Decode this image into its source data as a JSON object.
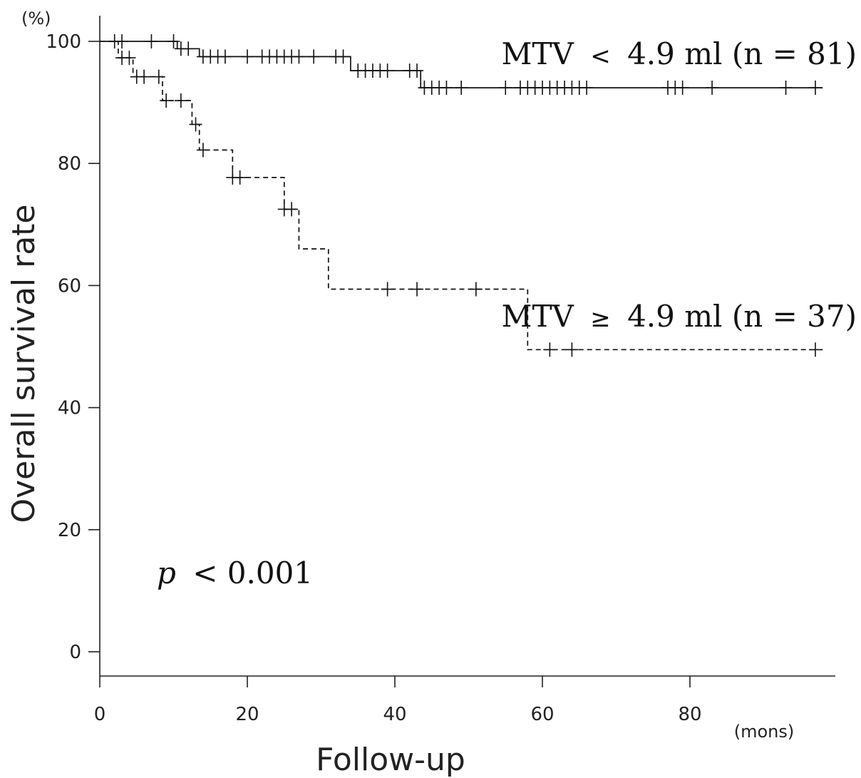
{
  "chart_data": {
    "type": "line",
    "subtype": "kaplan-meier",
    "title": "",
    "xlabel": "Follow-up",
    "x_unit": "(mons)",
    "ylabel": "Overall survival rate",
    "y_unit": "(%)",
    "xlim": [
      0,
      98
    ],
    "ylim": [
      0,
      100
    ],
    "x_ticks": [
      0,
      20,
      40,
      60,
      80
    ],
    "y_ticks": [
      0,
      20,
      40,
      60,
      80,
      100
    ],
    "grid": false,
    "annotation": {
      "p_symbol": "p",
      "p_text": "< 0.001"
    },
    "series": [
      {
        "name": "MTV < 4.9 ml (n = 81)",
        "line_style": "solid",
        "label_parts": {
          "lhs": "MTV",
          "op": "<",
          "rhs": "4.9 ml (n = 81)"
        },
        "steps": [
          [
            0,
            100
          ],
          [
            10.5,
            100
          ],
          [
            10.5,
            98.8
          ],
          [
            13.5,
            98.8
          ],
          [
            13.5,
            97.5
          ],
          [
            34,
            97.5
          ],
          [
            34,
            95.2
          ],
          [
            43.5,
            95.2
          ],
          [
            43.5,
            92.4
          ],
          [
            98,
            92.4
          ]
        ],
        "censored": [
          [
            2,
            100
          ],
          [
            3,
            100
          ],
          [
            7,
            100
          ],
          [
            10,
            100
          ],
          [
            11,
            98.8
          ],
          [
            12,
            98.8
          ],
          [
            14,
            97.5
          ],
          [
            15,
            97.5
          ],
          [
            16,
            97.5
          ],
          [
            17,
            97.5
          ],
          [
            20,
            97.5
          ],
          [
            22,
            97.5
          ],
          [
            23,
            97.5
          ],
          [
            24,
            97.5
          ],
          [
            25,
            97.5
          ],
          [
            26,
            97.5
          ],
          [
            27,
            97.5
          ],
          [
            29,
            97.5
          ],
          [
            32,
            97.5
          ],
          [
            33,
            97.5
          ],
          [
            35,
            95.2
          ],
          [
            36,
            95.2
          ],
          [
            37,
            95.2
          ],
          [
            38,
            95.2
          ],
          [
            39,
            95.2
          ],
          [
            42,
            95.2
          ],
          [
            43,
            95.2
          ],
          [
            44,
            92.4
          ],
          [
            45,
            92.4
          ],
          [
            46,
            92.4
          ],
          [
            47,
            92.4
          ],
          [
            49,
            92.4
          ],
          [
            55,
            92.4
          ],
          [
            57,
            92.4
          ],
          [
            58,
            92.4
          ],
          [
            59,
            92.4
          ],
          [
            60,
            92.4
          ],
          [
            61,
            92.4
          ],
          [
            62,
            92.4
          ],
          [
            63,
            92.4
          ],
          [
            64,
            92.4
          ],
          [
            65,
            92.4
          ],
          [
            66,
            92.4
          ],
          [
            77,
            92.4
          ],
          [
            78,
            92.4
          ],
          [
            79,
            92.4
          ],
          [
            83,
            92.4
          ],
          [
            93,
            92.4
          ],
          [
            97,
            92.4
          ]
        ]
      },
      {
        "name": "MTV ≥ 4.9 ml (n = 37)",
        "line_style": "dashed",
        "label_parts": {
          "lhs": "MTV",
          "op": "≥",
          "rhs": "4.9 ml (n = 37)"
        },
        "steps": [
          [
            0,
            100
          ],
          [
            2.5,
            100
          ],
          [
            2.5,
            97.3
          ],
          [
            4.5,
            97.3
          ],
          [
            4.5,
            94.2
          ],
          [
            8.5,
            94.2
          ],
          [
            8.5,
            90.3
          ],
          [
            12.5,
            90.3
          ],
          [
            12.5,
            86.4
          ],
          [
            13.5,
            86.4
          ],
          [
            13.5,
            82.2
          ],
          [
            18,
            82.2
          ],
          [
            18,
            77.7
          ],
          [
            25,
            77.7
          ],
          [
            25,
            72.5
          ],
          [
            27,
            72.5
          ],
          [
            27,
            66
          ],
          [
            31,
            66
          ],
          [
            31,
            59.4
          ],
          [
            58,
            59.4
          ],
          [
            58,
            49.5
          ],
          [
            98,
            49.5
          ]
        ],
        "censored": [
          [
            3,
            97.3
          ],
          [
            4,
            97.3
          ],
          [
            5,
            94.2
          ],
          [
            6,
            94.2
          ],
          [
            8,
            94.2
          ],
          [
            9,
            90.3
          ],
          [
            11,
            90.3
          ],
          [
            13,
            86.4
          ],
          [
            14,
            82.2
          ],
          [
            18,
            77.7
          ],
          [
            19,
            77.7
          ],
          [
            25,
            72.5
          ],
          [
            26,
            72.5
          ],
          [
            39,
            59.4
          ],
          [
            43,
            59.4
          ],
          [
            51,
            59.4
          ],
          [
            61,
            49.5
          ],
          [
            64,
            49.5
          ],
          [
            97,
            49.5
          ]
        ]
      }
    ]
  }
}
